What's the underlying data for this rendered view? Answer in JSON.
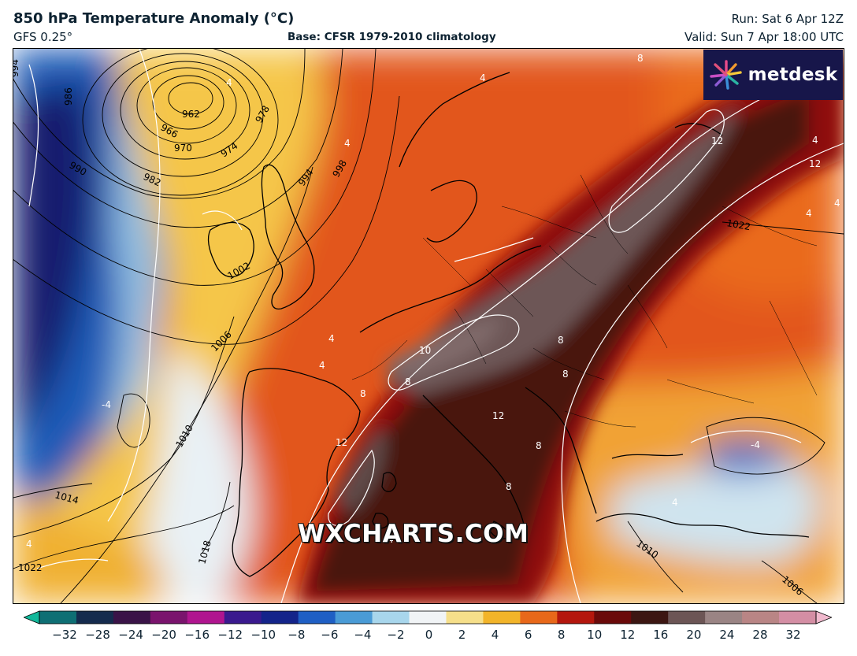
{
  "header": {
    "title": "850 hPa Temperature Anomaly (°C)",
    "model": "GFS 0.25°",
    "base": "Base: CFSR 1979-2010 climatology",
    "run": "Run: Sat 6 Apr 12Z",
    "valid": "Valid: Sun 7 Apr 18:00 UTC"
  },
  "logo": {
    "text": "metdesk",
    "icon": "flower-burst-icon"
  },
  "watermark": "WXCHARTS.COM",
  "colorbar": {
    "ticks": [
      "−32",
      "−28",
      "−24",
      "−20",
      "−16",
      "−12",
      "−10",
      "−8",
      "−6",
      "−4",
      "−2",
      "0",
      "2",
      "4",
      "6",
      "8",
      "10",
      "12",
      "16",
      "20",
      "24",
      "28",
      "32"
    ],
    "colors": [
      "#12b89a",
      "#0f6f74",
      "#152b4d",
      "#3a1347",
      "#7a146d",
      "#b0158f",
      "#3a1a8e",
      "#14248a",
      "#1f5fc4",
      "#4a9bd6",
      "#a8d6ec",
      "#f1f4f6",
      "#f6df8a",
      "#f2b429",
      "#e8681a",
      "#b4170d",
      "#6a0a0a",
      "#3c1612",
      "#6c5555",
      "#9a8484",
      "#b98585",
      "#d48ea4",
      "#f0b9cd"
    ]
  },
  "isobars": [
    "962",
    "966",
    "970",
    "974",
    "978",
    "982",
    "986",
    "990",
    "994",
    "994",
    "998",
    "1002",
    "1006",
    "1010",
    "1014",
    "1018",
    "1022",
    "1010",
    "1022",
    "1006"
  ],
  "anomaly_labels": [
    "4",
    "4",
    "4",
    "4",
    "4",
    "4",
    "4",
    "4",
    "-4",
    "-4",
    "8",
    "8",
    "8",
    "8",
    "8",
    "8",
    "10",
    "12",
    "12",
    "12",
    "12",
    "4",
    "4",
    "8",
    "4"
  ]
}
